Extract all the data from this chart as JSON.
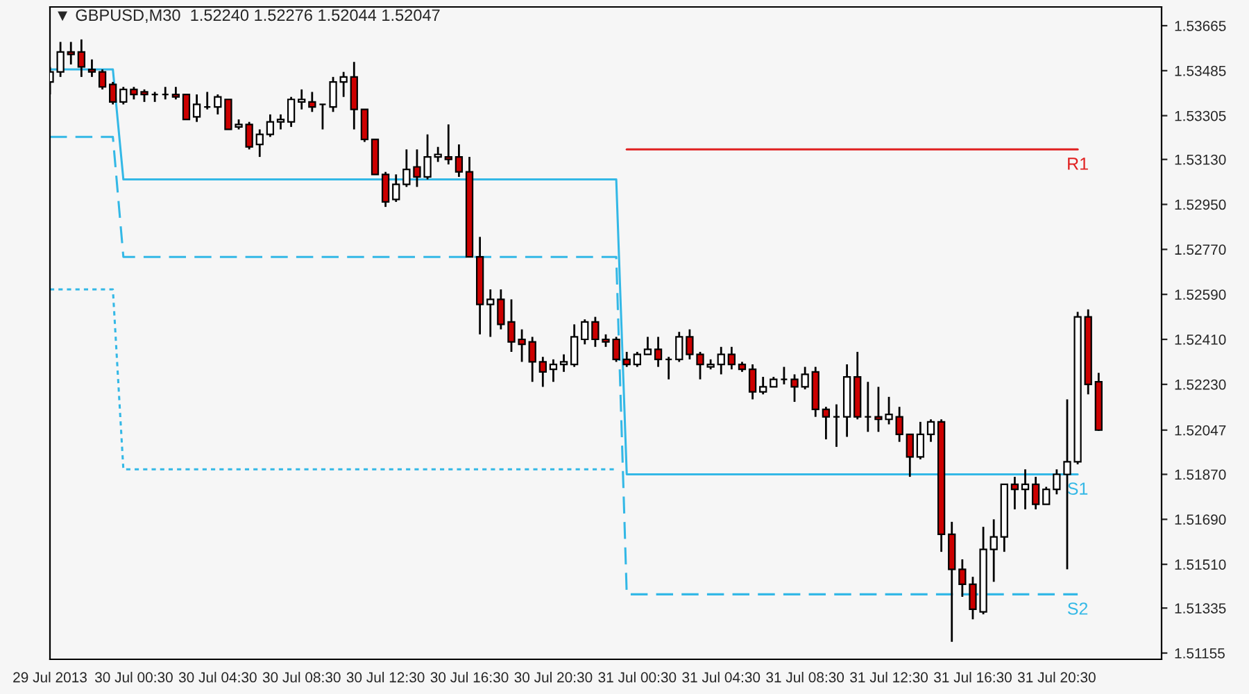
{
  "chart_data": {
    "type": "candlestick",
    "title": "▼ GBPUSD,M30  1.52240 1.52276 1.52044 1.52047",
    "x": [
      "2013-07-29T20:30",
      "2013-07-29T21:00",
      "2013-07-29T21:30",
      "2013-07-29T22:00",
      "2013-07-29T22:30",
      "2013-07-29T23:00",
      "2013-07-29T23:30",
      "2013-07-30T00:00",
      "2013-07-30T00:30",
      "2013-07-30T01:00",
      "2013-07-30T01:30",
      "2013-07-30T02:00",
      "2013-07-30T02:30",
      "2013-07-30T03:00",
      "2013-07-30T03:30",
      "2013-07-30T04:00",
      "2013-07-30T04:30",
      "2013-07-30T05:00",
      "2013-07-30T05:30",
      "2013-07-30T06:00",
      "2013-07-30T06:30",
      "2013-07-30T07:00",
      "2013-07-30T07:30",
      "2013-07-30T08:00",
      "2013-07-30T08:30",
      "2013-07-30T09:00",
      "2013-07-30T09:30",
      "2013-07-30T10:00",
      "2013-07-30T10:30",
      "2013-07-30T11:00",
      "2013-07-30T11:30",
      "2013-07-30T12:00",
      "2013-07-30T12:30",
      "2013-07-30T13:00",
      "2013-07-30T13:30",
      "2013-07-30T14:00",
      "2013-07-30T14:30",
      "2013-07-30T15:00",
      "2013-07-30T15:30",
      "2013-07-30T16:00",
      "2013-07-30T16:30",
      "2013-07-30T17:00",
      "2013-07-30T17:30",
      "2013-07-30T18:00",
      "2013-07-30T18:30",
      "2013-07-30T19:00",
      "2013-07-30T19:30",
      "2013-07-30T20:00",
      "2013-07-30T20:30",
      "2013-07-30T21:00",
      "2013-07-30T21:30",
      "2013-07-30T22:00",
      "2013-07-30T22:30",
      "2013-07-30T23:00",
      "2013-07-30T23:30",
      "2013-07-31T00:00",
      "2013-07-31T00:30",
      "2013-07-31T01:00",
      "2013-07-31T01:30",
      "2013-07-31T02:00",
      "2013-07-31T02:30",
      "2013-07-31T03:00",
      "2013-07-31T03:30",
      "2013-07-31T04:00",
      "2013-07-31T04:30",
      "2013-07-31T05:00",
      "2013-07-31T05:30",
      "2013-07-31T06:00",
      "2013-07-31T06:30",
      "2013-07-31T07:00",
      "2013-07-31T07:30",
      "2013-07-31T08:00",
      "2013-07-31T08:30",
      "2013-07-31T09:00",
      "2013-07-31T09:30",
      "2013-07-31T10:00",
      "2013-07-31T10:30",
      "2013-07-31T11:00",
      "2013-07-31T11:30",
      "2013-07-31T12:00",
      "2013-07-31T12:30",
      "2013-07-31T13:00",
      "2013-07-31T13:30",
      "2013-07-31T14:00",
      "2013-07-31T14:30",
      "2013-07-31T15:00",
      "2013-07-31T15:30",
      "2013-07-31T16:00",
      "2013-07-31T16:30",
      "2013-07-31T17:00",
      "2013-07-31T17:30",
      "2013-07-31T18:00",
      "2013-07-31T18:30",
      "2013-07-31T19:00",
      "2013-07-31T19:30",
      "2013-07-31T20:00",
      "2013-07-31T20:30",
      "2013-07-31T21:00",
      "2013-07-31T21:30",
      "2013-07-31T22:00",
      "2013-07-31T22:30"
    ],
    "ohlc": [
      [
        1.5344,
        1.535,
        1.5339,
        1.5348
      ],
      [
        1.5348,
        1.536,
        1.5346,
        1.5356
      ],
      [
        1.5356,
        1.536,
        1.5351,
        1.5355
      ],
      [
        1.5356,
        1.5361,
        1.5346,
        1.535
      ],
      [
        1.5349,
        1.5353,
        1.5346,
        1.5348
      ],
      [
        1.5348,
        1.5349,
        1.5341,
        1.5342
      ],
      [
        1.5343,
        1.5344,
        1.5335,
        1.5336
      ],
      [
        1.5336,
        1.5342,
        1.5335,
        1.5341
      ],
      [
        1.5341,
        1.5342,
        1.5337,
        1.5339
      ],
      [
        1.534,
        1.5341,
        1.5336,
        1.5339
      ],
      [
        1.5339,
        1.534,
        1.5336,
        1.5339
      ],
      [
        1.5339,
        1.5342,
        1.5337,
        1.5339
      ],
      [
        1.5339,
        1.5342,
        1.5337,
        1.5338
      ],
      [
        1.5339,
        1.5339,
        1.5329,
        1.5329
      ],
      [
        1.533,
        1.5339,
        1.5328,
        1.5335
      ],
      [
        1.5334,
        1.534,
        1.5333,
        1.5334
      ],
      [
        1.5334,
        1.5339,
        1.5331,
        1.5338
      ],
      [
        1.5337,
        1.5337,
        1.5325,
        1.5325
      ],
      [
        1.5326,
        1.5329,
        1.5325,
        1.5327
      ],
      [
        1.5327,
        1.5328,
        1.5317,
        1.5318
      ],
      [
        1.5319,
        1.5325,
        1.5314,
        1.5323
      ],
      [
        1.5323,
        1.5331,
        1.5322,
        1.5328
      ],
      [
        1.5328,
        1.5331,
        1.5325,
        1.5329
      ],
      [
        1.5328,
        1.5338,
        1.5326,
        1.5337
      ],
      [
        1.5336,
        1.5341,
        1.5333,
        1.5337
      ],
      [
        1.5336,
        1.534,
        1.5332,
        1.5334
      ],
      [
        1.5335,
        1.5335,
        1.5325,
        1.5335
      ],
      [
        1.5334,
        1.5346,
        1.5332,
        1.5344
      ],
      [
        1.5344,
        1.5348,
        1.5338,
        1.5346
      ],
      [
        1.5346,
        1.5352,
        1.5325,
        1.5333
      ],
      [
        1.5333,
        1.5333,
        1.532,
        1.5321
      ],
      [
        1.5321,
        1.5321,
        1.5307,
        1.5307
      ],
      [
        1.5307,
        1.5308,
        1.5294,
        1.5296
      ],
      [
        1.5297,
        1.5307,
        1.5296,
        1.5303
      ],
      [
        1.5303,
        1.5317,
        1.5302,
        1.5309
      ],
      [
        1.531,
        1.5317,
        1.5302,
        1.5306
      ],
      [
        1.5306,
        1.5323,
        1.5305,
        1.5314
      ],
      [
        1.5314,
        1.5318,
        1.5312,
        1.5315
      ],
      [
        1.5314,
        1.5327,
        1.5311,
        1.5313
      ],
      [
        1.5314,
        1.5319,
        1.5306,
        1.5308
      ],
      [
        1.5308,
        1.5314,
        1.5274,
        1.5274
      ],
      [
        1.5274,
        1.5282,
        1.5243,
        1.5255
      ],
      [
        1.5255,
        1.5261,
        1.5242,
        1.5257
      ],
      [
        1.5257,
        1.5261,
        1.5245,
        1.5247
      ],
      [
        1.5248,
        1.5257,
        1.5236,
        1.524
      ],
      [
        1.5241,
        1.5245,
        1.5232,
        1.5239
      ],
      [
        1.524,
        1.5242,
        1.5224,
        1.5232
      ],
      [
        1.5232,
        1.5234,
        1.5222,
        1.5228
      ],
      [
        1.5229,
        1.5233,
        1.5224,
        1.5231
      ],
      [
        1.5231,
        1.5235,
        1.5228,
        1.5232
      ],
      [
        1.5231,
        1.5247,
        1.523,
        1.5242
      ],
      [
        1.5241,
        1.5249,
        1.5239,
        1.5248
      ],
      [
        1.5248,
        1.525,
        1.5238,
        1.5241
      ],
      [
        1.5241,
        1.5243,
        1.5238,
        1.524
      ],
      [
        1.5241,
        1.5242,
        1.5232,
        1.5233
      ],
      [
        1.5233,
        1.5236,
        1.523,
        1.5231
      ],
      [
        1.5231,
        1.5236,
        1.523,
        1.5235
      ],
      [
        1.5235,
        1.5242,
        1.5235,
        1.5237
      ],
      [
        1.5237,
        1.5242,
        1.523,
        1.5233
      ],
      [
        1.5233,
        1.5234,
        1.5225,
        1.5233
      ],
      [
        1.5233,
        1.5244,
        1.5232,
        1.5242
      ],
      [
        1.5242,
        1.5245,
        1.5233,
        1.5235
      ],
      [
        1.5235,
        1.5236,
        1.5225,
        1.5231
      ],
      [
        1.523,
        1.5233,
        1.5229,
        1.5231
      ],
      [
        1.5231,
        1.5238,
        1.5227,
        1.5235
      ],
      [
        1.5235,
        1.5238,
        1.5229,
        1.5231
      ],
      [
        1.5231,
        1.5232,
        1.5228,
        1.5229
      ],
      [
        1.5229,
        1.5231,
        1.5217,
        1.522
      ],
      [
        1.522,
        1.5226,
        1.5219,
        1.5222
      ],
      [
        1.5222,
        1.5226,
        1.5222,
        1.5225
      ],
      [
        1.5225,
        1.523,
        1.5223,
        1.5225
      ],
      [
        1.5225,
        1.5227,
        1.5216,
        1.5222
      ],
      [
        1.5222,
        1.523,
        1.5221,
        1.5227
      ],
      [
        1.5228,
        1.523,
        1.521,
        1.5213
      ],
      [
        1.5213,
        1.5214,
        1.5201,
        1.521
      ],
      [
        1.521,
        1.5215,
        1.5198,
        1.521
      ],
      [
        1.521,
        1.5231,
        1.5202,
        1.5226
      ],
      [
        1.5226,
        1.5236,
        1.5209,
        1.521
      ],
      [
        1.521,
        1.5224,
        1.5204,
        1.521
      ],
      [
        1.521,
        1.5222,
        1.5204,
        1.5209
      ],
      [
        1.5209,
        1.5218,
        1.5207,
        1.5211
      ],
      [
        1.521,
        1.5214,
        1.52,
        1.5203
      ],
      [
        1.5203,
        1.5203,
        1.5186,
        1.5194
      ],
      [
        1.5194,
        1.5208,
        1.5193,
        1.5203
      ],
      [
        1.5203,
        1.5209,
        1.52,
        1.5208
      ],
      [
        1.5208,
        1.5209,
        1.5156,
        1.5163
      ],
      [
        1.5163,
        1.5168,
        1.512,
        1.5149
      ],
      [
        1.5149,
        1.5153,
        1.5138,
        1.5143
      ],
      [
        1.5143,
        1.5146,
        1.5129,
        1.5133
      ],
      [
        1.5132,
        1.5166,
        1.5131,
        1.5157
      ],
      [
        1.5157,
        1.5169,
        1.5144,
        1.5162
      ],
      [
        1.5162,
        1.5183,
        1.5156,
        1.5183
      ],
      [
        1.5183,
        1.5186,
        1.5173,
        1.5181
      ],
      [
        1.5181,
        1.5189,
        1.5173,
        1.5183
      ],
      [
        1.5183,
        1.5186,
        1.5173,
        1.5175
      ],
      [
        1.5175,
        1.5182,
        1.5175,
        1.5181
      ],
      [
        1.5181,
        1.5189,
        1.5179,
        1.5187
      ],
      [
        1.5187,
        1.5217,
        1.5149,
        1.5192
      ],
      [
        1.5192,
        1.5252,
        1.5191,
        1.525
      ],
      [
        1.525,
        1.5253,
        1.5219,
        1.5223
      ],
      [
        1.5224,
        1.52276,
        1.52044,
        1.52047
      ]
    ],
    "series": [
      {
        "name": "R1",
        "type": "line",
        "color": "#e02020",
        "line_style": "solid",
        "x": [
          "2013-07-31T00:00",
          "2013-07-31T21:30"
        ],
        "values": [
          1.5317,
          1.5317
        ]
      },
      {
        "name": "S1",
        "type": "line",
        "color": "#33b8e6",
        "line_style": "solid",
        "x": [
          "2013-07-29T20:30",
          "2013-07-29T23:30",
          "2013-07-30T00:00",
          "2013-07-30T23:30",
          "2013-07-31T00:00",
          "2013-07-31T21:30"
        ],
        "values": [
          1.5349,
          1.5349,
          1.5305,
          1.5305,
          1.5187,
          1.5187
        ]
      },
      {
        "name": "S2",
        "type": "line",
        "color": "#33b8e6",
        "line_style": "dashed",
        "x": [
          "2013-07-29T20:30",
          "2013-07-29T23:30",
          "2013-07-30T00:00",
          "2013-07-30T23:30",
          "2013-07-31T00:00",
          "2013-07-31T21:30"
        ],
        "values": [
          1.5322,
          1.5322,
          1.5274,
          1.5274,
          1.5139,
          1.5139
        ]
      },
      {
        "type": "line",
        "color": "#33b8e6",
        "line_style": "dotted",
        "x": [
          "2013-07-29T20:30",
          "2013-07-29T23:30",
          "2013-07-30T00:00",
          "2013-07-30T23:30"
        ],
        "values": [
          1.5261,
          1.5261,
          1.5189,
          1.5189
        ]
      }
    ],
    "xlim": [
      "2013-07-29T20:30",
      "2013-08-01T01:30"
    ],
    "xticks": [
      {
        "value": "2013-07-29T20:30",
        "label": "29 Jul 2013"
      },
      {
        "value": "2013-07-30T00:30",
        "label": "30 Jul 00:30"
      },
      {
        "value": "2013-07-30T04:30",
        "label": "30 Jul 04:30"
      },
      {
        "value": "2013-07-30T08:30",
        "label": "30 Jul 08:30"
      },
      {
        "value": "2013-07-30T12:30",
        "label": "30 Jul 12:30"
      },
      {
        "value": "2013-07-30T16:30",
        "label": "30 Jul 16:30"
      },
      {
        "value": "2013-07-30T20:30",
        "label": "30 Jul 20:30"
      },
      {
        "value": "2013-07-31T00:30",
        "label": "31 Jul 00:30"
      },
      {
        "value": "2013-07-31T04:30",
        "label": "31 Jul 04:30"
      },
      {
        "value": "2013-07-31T08:30",
        "label": "31 Jul 08:30"
      },
      {
        "value": "2013-07-31T12:30",
        "label": "31 Jul 12:30"
      },
      {
        "value": "2013-07-31T16:30",
        "label": "31 Jul 16:30"
      },
      {
        "value": "2013-07-31T20:30",
        "label": "31 Jul 20:30"
      }
    ],
    "ylim": [
      1.5113,
      1.5374
    ],
    "yticks": [
      1.53665,
      1.53485,
      1.53305,
      {
        "value": 1.5313,
        "label": "1.53130"
      },
      {
        "value": 1.5295,
        "label": "1.52950"
      },
      {
        "value": 1.5277,
        "label": "1.52770"
      },
      {
        "value": 1.5259,
        "label": "1.52590"
      },
      {
        "value": 1.5241,
        "label": "1.52410"
      },
      {
        "value": 1.5223,
        "label": "1.52230"
      },
      1.52047,
      {
        "value": 1.5187,
        "label": "1.51870"
      },
      {
        "value": 1.5169,
        "label": "1.51690"
      },
      {
        "value": 1.5151,
        "label": "1.51510"
      },
      1.51335,
      1.51155
    ],
    "grid": false,
    "legend": false
  }
}
